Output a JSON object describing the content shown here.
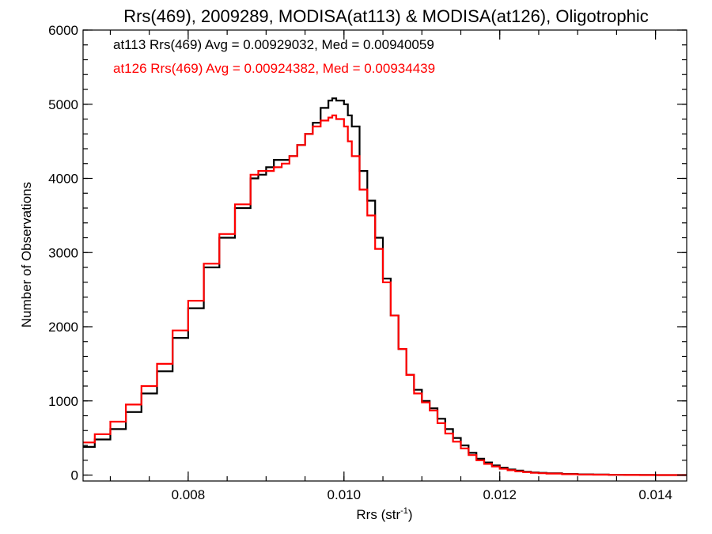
{
  "chart_data": {
    "type": "line",
    "style": "step-histogram",
    "title": "Rrs(469), 2009289, MODISA(at113) & MODISA(at126), Oligotrophic",
    "xlabel": "Rrs (str",
    "xlabel_sup": "-1",
    "xlabel_close": ")",
    "ylabel": "Number of Observations",
    "xlim": [
      0.00665,
      0.0144
    ],
    "ylim": [
      -80,
      6000
    ],
    "xticks": [
      0.008,
      0.01,
      0.012,
      0.014
    ],
    "xtick_labels": [
      "0.008",
      "0.010",
      "0.012",
      "0.014"
    ],
    "xminor_step": 0.0005,
    "yticks": [
      0,
      1000,
      2000,
      3000,
      4000,
      5000,
      6000
    ],
    "ytick_labels": [
      "0",
      "1000",
      "2000",
      "3000",
      "4000",
      "5000",
      "6000"
    ],
    "yminor_step": 200,
    "grid": false,
    "annotations": [
      {
        "text": "at113 Rrs(469) Avg = 0.00929032, Med = 0.00940059",
        "color": "#000000"
      },
      {
        "text": "at126 Rrs(469) Avg = 0.00924382, Med = 0.00934439",
        "color": "#ff0000"
      }
    ],
    "series": [
      {
        "color": "#000000",
        "x": [
          0.00665,
          0.0068,
          0.007,
          0.0072,
          0.0074,
          0.0076,
          0.0078,
          0.008,
          0.0082,
          0.0084,
          0.0086,
          0.0088,
          0.0089,
          0.009,
          0.0091,
          0.0092,
          0.0093,
          0.0094,
          0.0095,
          0.0096,
          0.0097,
          0.0098,
          0.00985,
          0.0099,
          0.01,
          0.01005,
          0.0101,
          0.0102,
          0.0103,
          0.0104,
          0.0105,
          0.0106,
          0.0107,
          0.0108,
          0.0109,
          0.011,
          0.0111,
          0.0112,
          0.0113,
          0.0114,
          0.0115,
          0.0116,
          0.0117,
          0.0118,
          0.0119,
          0.012,
          0.0121,
          0.0122,
          0.0123,
          0.0124,
          0.0125,
          0.0126,
          0.0128,
          0.013,
          0.0132,
          0.0134,
          0.0136,
          0.0138,
          0.014,
          0.0142,
          0.0144
        ],
        "y": [
          380,
          480,
          620,
          850,
          1100,
          1400,
          1850,
          2250,
          2800,
          3200,
          3600,
          4000,
          4050,
          4150,
          4250,
          4250,
          4300,
          4450,
          4600,
          4750,
          4950,
          5050,
          5080,
          5050,
          5000,
          4850,
          4700,
          4100,
          3700,
          3200,
          2650,
          2150,
          1700,
          1350,
          1150,
          1000,
          900,
          760,
          620,
          500,
          400,
          300,
          220,
          170,
          130,
          100,
          75,
          60,
          45,
          35,
          30,
          25,
          15,
          10,
          6,
          4,
          2,
          1,
          0,
          0,
          0
        ]
      },
      {
        "color": "#ff0000",
        "x": [
          0.00665,
          0.0068,
          0.007,
          0.0072,
          0.0074,
          0.0076,
          0.0078,
          0.008,
          0.0082,
          0.0084,
          0.0086,
          0.0088,
          0.0089,
          0.009,
          0.0091,
          0.0092,
          0.0093,
          0.0094,
          0.0095,
          0.0096,
          0.0097,
          0.0098,
          0.00985,
          0.0099,
          0.01,
          0.01005,
          0.0101,
          0.0102,
          0.0103,
          0.0104,
          0.0105,
          0.0106,
          0.0107,
          0.0108,
          0.0109,
          0.011,
          0.0111,
          0.0112,
          0.0113,
          0.0114,
          0.0115,
          0.0116,
          0.0117,
          0.0118,
          0.0119,
          0.012,
          0.0121,
          0.0122,
          0.0123,
          0.0124,
          0.0125,
          0.0126,
          0.0128,
          0.013,
          0.0132,
          0.0134,
          0.0136,
          0.0138,
          0.014,
          0.0142,
          0.0144
        ],
        "y": [
          440,
          550,
          720,
          950,
          1200,
          1500,
          1950,
          2350,
          2850,
          3250,
          3650,
          4050,
          4100,
          4100,
          4150,
          4200,
          4300,
          4450,
          4600,
          4700,
          4780,
          4820,
          4850,
          4800,
          4700,
          4500,
          4300,
          3850,
          3500,
          3050,
          2600,
          2150,
          1700,
          1350,
          1100,
          980,
          870,
          700,
          560,
          450,
          360,
          270,
          200,
          150,
          115,
          85,
          65,
          50,
          40,
          30,
          25,
          20,
          12,
          8,
          5,
          3,
          1,
          0,
          0,
          0,
          0
        ]
      }
    ]
  }
}
